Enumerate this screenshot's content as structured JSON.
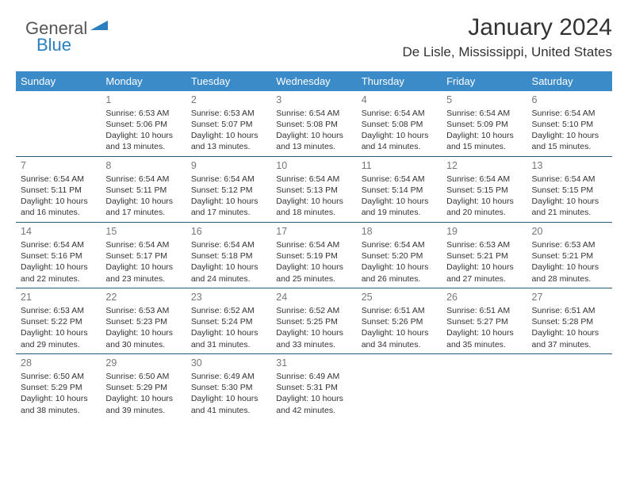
{
  "logo": {
    "part1": "General",
    "part2": "Blue"
  },
  "header": {
    "month_title": "January 2024",
    "location": "De Lisle, Mississippi, United States"
  },
  "colors": {
    "header_bg": "#3b8bc9",
    "header_text": "#ffffff",
    "separator": "#2a5a7a",
    "daynum": "#777777",
    "body_text": "#333333",
    "logo_gray": "#555555",
    "logo_blue": "#2a7fbf"
  },
  "day_headers": [
    "Sunday",
    "Monday",
    "Tuesday",
    "Wednesday",
    "Thursday",
    "Friday",
    "Saturday"
  ],
  "weeks": [
    [
      null,
      {
        "n": "1",
        "sr": "6:53 AM",
        "ss": "5:06 PM",
        "dl": "10 hours and 13 minutes."
      },
      {
        "n": "2",
        "sr": "6:53 AM",
        "ss": "5:07 PM",
        "dl": "10 hours and 13 minutes."
      },
      {
        "n": "3",
        "sr": "6:54 AM",
        "ss": "5:08 PM",
        "dl": "10 hours and 13 minutes."
      },
      {
        "n": "4",
        "sr": "6:54 AM",
        "ss": "5:08 PM",
        "dl": "10 hours and 14 minutes."
      },
      {
        "n": "5",
        "sr": "6:54 AM",
        "ss": "5:09 PM",
        "dl": "10 hours and 15 minutes."
      },
      {
        "n": "6",
        "sr": "6:54 AM",
        "ss": "5:10 PM",
        "dl": "10 hours and 15 minutes."
      }
    ],
    [
      {
        "n": "7",
        "sr": "6:54 AM",
        "ss": "5:11 PM",
        "dl": "10 hours and 16 minutes."
      },
      {
        "n": "8",
        "sr": "6:54 AM",
        "ss": "5:11 PM",
        "dl": "10 hours and 17 minutes."
      },
      {
        "n": "9",
        "sr": "6:54 AM",
        "ss": "5:12 PM",
        "dl": "10 hours and 17 minutes."
      },
      {
        "n": "10",
        "sr": "6:54 AM",
        "ss": "5:13 PM",
        "dl": "10 hours and 18 minutes."
      },
      {
        "n": "11",
        "sr": "6:54 AM",
        "ss": "5:14 PM",
        "dl": "10 hours and 19 minutes."
      },
      {
        "n": "12",
        "sr": "6:54 AM",
        "ss": "5:15 PM",
        "dl": "10 hours and 20 minutes."
      },
      {
        "n": "13",
        "sr": "6:54 AM",
        "ss": "5:15 PM",
        "dl": "10 hours and 21 minutes."
      }
    ],
    [
      {
        "n": "14",
        "sr": "6:54 AM",
        "ss": "5:16 PM",
        "dl": "10 hours and 22 minutes."
      },
      {
        "n": "15",
        "sr": "6:54 AM",
        "ss": "5:17 PM",
        "dl": "10 hours and 23 minutes."
      },
      {
        "n": "16",
        "sr": "6:54 AM",
        "ss": "5:18 PM",
        "dl": "10 hours and 24 minutes."
      },
      {
        "n": "17",
        "sr": "6:54 AM",
        "ss": "5:19 PM",
        "dl": "10 hours and 25 minutes."
      },
      {
        "n": "18",
        "sr": "6:54 AM",
        "ss": "5:20 PM",
        "dl": "10 hours and 26 minutes."
      },
      {
        "n": "19",
        "sr": "6:53 AM",
        "ss": "5:21 PM",
        "dl": "10 hours and 27 minutes."
      },
      {
        "n": "20",
        "sr": "6:53 AM",
        "ss": "5:21 PM",
        "dl": "10 hours and 28 minutes."
      }
    ],
    [
      {
        "n": "21",
        "sr": "6:53 AM",
        "ss": "5:22 PM",
        "dl": "10 hours and 29 minutes."
      },
      {
        "n": "22",
        "sr": "6:53 AM",
        "ss": "5:23 PM",
        "dl": "10 hours and 30 minutes."
      },
      {
        "n": "23",
        "sr": "6:52 AM",
        "ss": "5:24 PM",
        "dl": "10 hours and 31 minutes."
      },
      {
        "n": "24",
        "sr": "6:52 AM",
        "ss": "5:25 PM",
        "dl": "10 hours and 33 minutes."
      },
      {
        "n": "25",
        "sr": "6:51 AM",
        "ss": "5:26 PM",
        "dl": "10 hours and 34 minutes."
      },
      {
        "n": "26",
        "sr": "6:51 AM",
        "ss": "5:27 PM",
        "dl": "10 hours and 35 minutes."
      },
      {
        "n": "27",
        "sr": "6:51 AM",
        "ss": "5:28 PM",
        "dl": "10 hours and 37 minutes."
      }
    ],
    [
      {
        "n": "28",
        "sr": "6:50 AM",
        "ss": "5:29 PM",
        "dl": "10 hours and 38 minutes."
      },
      {
        "n": "29",
        "sr": "6:50 AM",
        "ss": "5:29 PM",
        "dl": "10 hours and 39 minutes."
      },
      {
        "n": "30",
        "sr": "6:49 AM",
        "ss": "5:30 PM",
        "dl": "10 hours and 41 minutes."
      },
      {
        "n": "31",
        "sr": "6:49 AM",
        "ss": "5:31 PM",
        "dl": "10 hours and 42 minutes."
      },
      null,
      null,
      null
    ]
  ],
  "labels": {
    "sunrise": "Sunrise:",
    "sunset": "Sunset:",
    "daylight": "Daylight:"
  }
}
